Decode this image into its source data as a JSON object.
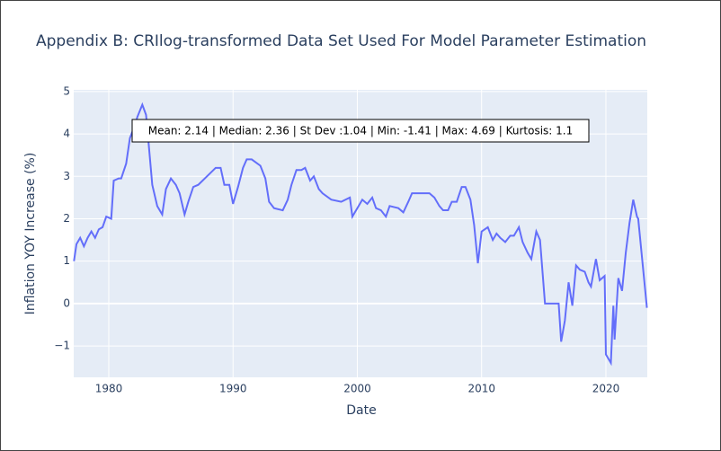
{
  "chart_data": {
    "type": "line",
    "title": "Appendix B: CRIlog-transformed Data Set Used For Model Parameter Estimation",
    "x_label": "Date",
    "y_label": "Inflation YOY Increase (%)",
    "annotation": "Mean: 2.14 | Median: 2.36 | St Dev :1.04 | Min: -1.41 | Max: 4.69 | Kurtosis: 1.1",
    "color": "#636efa",
    "grid": true,
    "x": [
      1977.2,
      1977.4,
      1977.7,
      1978.0,
      1978.3,
      1978.6,
      1978.9,
      1979.2,
      1979.5,
      1979.8,
      1980.2,
      1980.4,
      1980.8,
      1981.0,
      1981.4,
      1981.7,
      1982.1,
      1982.3,
      1982.7,
      1983.0,
      1983.2,
      1983.5,
      1983.9,
      1984.3,
      1984.6,
      1985.0,
      1985.4,
      1985.7,
      1986.1,
      1986.4,
      1986.8,
      1987.2,
      1987.9,
      1988.6,
      1989.0,
      1989.3,
      1989.7,
      1990.0,
      1990.4,
      1990.8,
      1991.1,
      1991.5,
      1992.2,
      1992.6,
      1992.9,
      1993.3,
      1994.0,
      1994.4,
      1994.7,
      1995.1,
      1995.5,
      1995.8,
      1996.2,
      1996.5,
      1996.9,
      1997.2,
      1997.9,
      1998.7,
      1999.4,
      1999.6,
      2000.1,
      2000.4,
      2000.8,
      2001.2,
      2001.5,
      2001.9,
      2002.3,
      2002.6,
      2003.3,
      2003.7,
      2004.1,
      2004.4,
      2005.1,
      2005.8,
      2006.2,
      2006.6,
      2006.9,
      2007.3,
      2007.6,
      2008.0,
      2008.4,
      2008.7,
      2009.1,
      2009.4,
      2009.7,
      2010.0,
      2010.5,
      2010.9,
      2011.2,
      2011.5,
      2011.9,
      2012.3,
      2012.6,
      2013.0,
      2013.3,
      2013.7,
      2014.0,
      2014.4,
      2014.7,
      2015.1,
      2016.2,
      2016.4,
      2016.7,
      2017.0,
      2017.3,
      2017.6,
      2017.9,
      2018.3,
      2018.6,
      2018.8,
      2019.2,
      2019.5,
      2019.9,
      2020.0,
      2020.4,
      2020.6,
      2020.7,
      2021.0,
      2021.3,
      2021.6,
      2021.9,
      2022.2,
      2022.5,
      2022.6,
      2022.9,
      2023.3
    ],
    "values": [
      1.0,
      1.4,
      1.55,
      1.35,
      1.55,
      1.7,
      1.55,
      1.75,
      1.8,
      2.05,
      2.0,
      2.9,
      2.95,
      2.95,
      3.3,
      3.9,
      4.2,
      4.4,
      4.69,
      4.45,
      3.8,
      2.8,
      2.3,
      2.1,
      2.7,
      2.95,
      2.8,
      2.6,
      2.1,
      2.4,
      2.75,
      2.8,
      3.0,
      3.2,
      3.2,
      2.8,
      2.8,
      2.35,
      2.75,
      3.2,
      3.4,
      3.4,
      3.25,
      2.95,
      2.4,
      2.25,
      2.2,
      2.45,
      2.8,
      3.15,
      3.15,
      3.2,
      2.9,
      3.0,
      2.7,
      2.6,
      2.45,
      2.4,
      2.5,
      2.05,
      2.3,
      2.45,
      2.35,
      2.5,
      2.25,
      2.2,
      2.05,
      2.3,
      2.25,
      2.15,
      2.4,
      2.6,
      2.6,
      2.6,
      2.5,
      2.3,
      2.2,
      2.2,
      2.4,
      2.4,
      2.75,
      2.75,
      2.45,
      1.85,
      0.95,
      1.7,
      1.8,
      1.5,
      1.65,
      1.55,
      1.45,
      1.6,
      1.6,
      1.8,
      1.45,
      1.2,
      1.05,
      1.7,
      1.5,
      0.0,
      0.0,
      -0.9,
      -0.4,
      0.5,
      -0.05,
      0.9,
      0.8,
      0.75,
      0.5,
      0.4,
      1.05,
      0.55,
      0.65,
      -1.2,
      -1.4,
      -0.05,
      -0.85,
      0.6,
      0.3,
      1.2,
      1.9,
      2.45,
      2.05,
      2.0,
      1.1,
      -0.1
    ],
    "xlim": [
      1977.18,
      2023.33
    ],
    "xticks": [
      1980,
      1990,
      2000,
      2010,
      2020
    ],
    "ylim": [
      -1.74,
      5.04
    ],
    "yticks": [
      {
        "value": -1,
        "label": "−1"
      },
      0,
      1,
      2,
      3,
      4,
      5
    ]
  }
}
